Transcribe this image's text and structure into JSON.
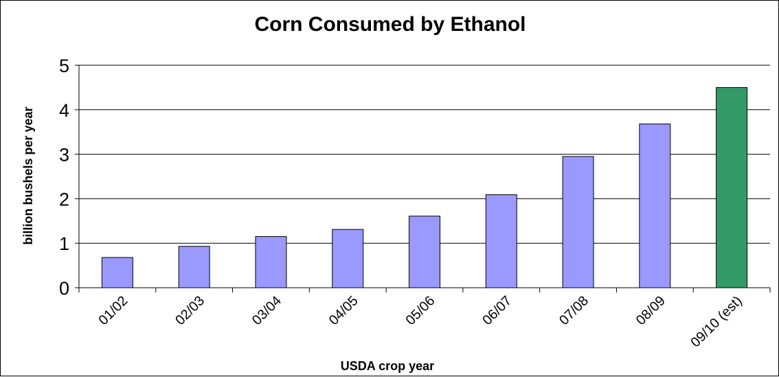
{
  "chart_data": {
    "type": "bar",
    "title": "Corn Consumed by Ethanol",
    "xlabel": "USDA crop year",
    "ylabel": "billion bushels per year",
    "categories": [
      "01/02",
      "02/03",
      "03/04",
      "04/05",
      "05/06",
      "06/07",
      "07/08",
      "08/09",
      "09/10 (est)"
    ],
    "values": [
      0.68,
      0.93,
      1.15,
      1.31,
      1.61,
      2.09,
      2.95,
      3.68,
      4.5
    ],
    "bar_colors": [
      "#9999ff",
      "#9999ff",
      "#9999ff",
      "#9999ff",
      "#9999ff",
      "#9999ff",
      "#9999ff",
      "#9999ff",
      "#339966"
    ],
    "ylim": [
      0,
      5
    ],
    "yticks": [
      "0",
      "1",
      "2",
      "3",
      "4",
      "5"
    ],
    "grid": true,
    "legend": "none"
  }
}
